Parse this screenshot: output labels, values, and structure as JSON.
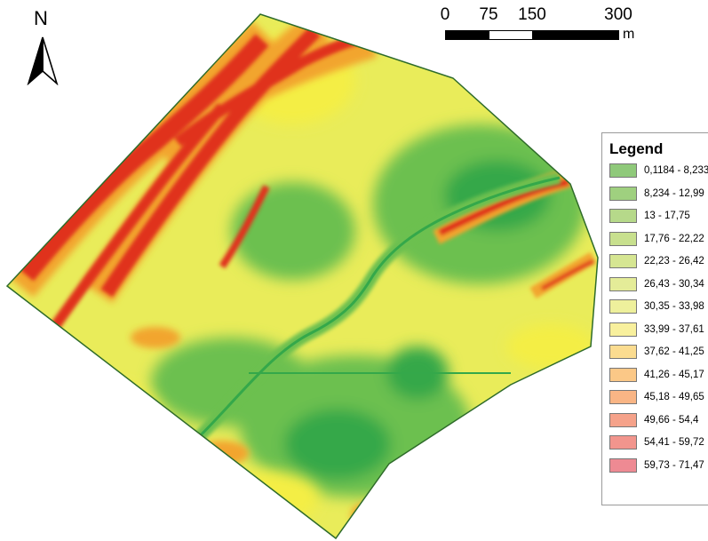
{
  "north_arrow": {
    "letter": "N",
    "icon": "north-arrow-icon"
  },
  "scale_bar": {
    "labels": [
      "0",
      "75",
      "150",
      "300"
    ],
    "unit": "m"
  },
  "legend": {
    "title": "Legend",
    "items": [
      {
        "label": "0,1184 - 8,233",
        "color": "#8fc97a"
      },
      {
        "label": "8,234 - 12,99",
        "color": "#9fd07f"
      },
      {
        "label": "13 - 17,75",
        "color": "#b6d98a"
      },
      {
        "label": "17,76 - 22,22",
        "color": "#c8e08e"
      },
      {
        "label": "22,23 - 26,42",
        "color": "#d6e692"
      },
      {
        "label": "26,43 - 30,34",
        "color": "#e4ec98"
      },
      {
        "label": "30,35 - 33,98",
        "color": "#eef09c"
      },
      {
        "label": "33,99 - 37,61",
        "color": "#f8f09d"
      },
      {
        "label": "37,62 - 41,25",
        "color": "#fbdc90"
      },
      {
        "label": "41,26 - 45,17",
        "color": "#fbc887"
      },
      {
        "label": "45,18 - 49,65",
        "color": "#f9b585"
      },
      {
        "label": "49,66 - 54,4",
        "color": "#f5a28a"
      },
      {
        "label": "54,41 - 59,72",
        "color": "#f2958d"
      },
      {
        "label": "59,73 - 71,47",
        "color": "#ee8a93"
      }
    ]
  },
  "map_colors": {
    "base": "#e9ec5a",
    "green_dark": "#34a84a",
    "green_mid": "#6cc04f",
    "yellow": "#f4ee45",
    "orange": "#f2a52e",
    "red": "#e0311f",
    "outline": "#2e6b2a"
  }
}
